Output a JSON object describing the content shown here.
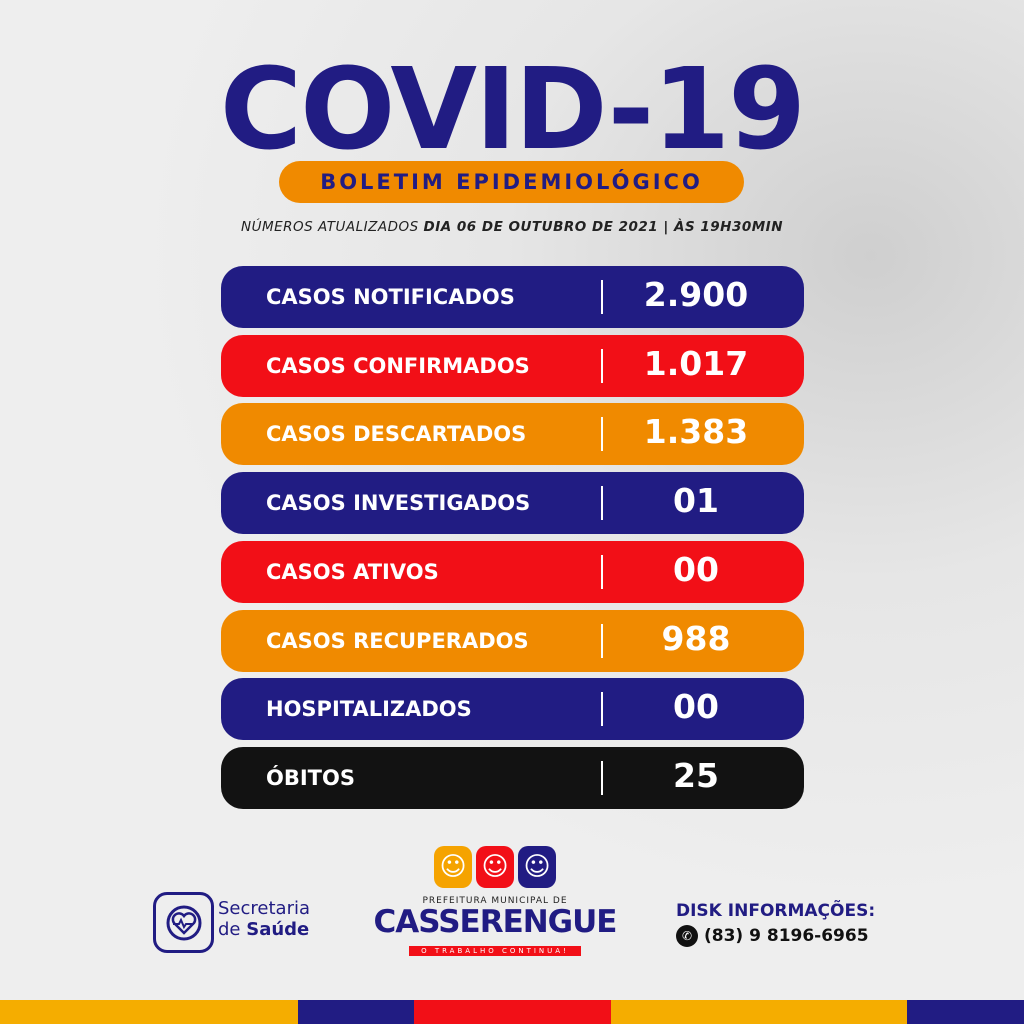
{
  "header": {
    "title": "COVID-19",
    "subtitle": "BOLETIM EPIDEMIOLÓGICO",
    "updated_prefix": "NÚMEROS ATUALIZADOS ",
    "updated_date": "DIA 06 DE OUTUBRO DE 2021 | ÀS 19H30MIN"
  },
  "colors": {
    "navy": "#211c83",
    "red": "#f20f17",
    "orange": "#f08a00",
    "black": "#121212"
  },
  "stats": [
    {
      "label": "CASOS NOTIFICADOS",
      "value": "2.900",
      "color": "#211c83"
    },
    {
      "label": "CASOS CONFIRMADOS",
      "value": "1.017",
      "color": "#f20f17"
    },
    {
      "label": "CASOS DESCARTADOS",
      "value": "1.383",
      "color": "#f08a00"
    },
    {
      "label": "CASOS INVESTIGADOS",
      "value": "01",
      "color": "#211c83"
    },
    {
      "label": "CASOS ATIVOS",
      "value": "00",
      "color": "#f20f17"
    },
    {
      "label": "CASOS RECUPERADOS",
      "value": "988",
      "color": "#f08a00"
    },
    {
      "label": "HOSPITALIZADOS",
      "value": "00",
      "color": "#211c83"
    },
    {
      "label": "ÓBITOS",
      "value": "25",
      "color": "#121212"
    }
  ],
  "footer": {
    "saude_line1": "Secretaria",
    "saude_line2_prefix": "de ",
    "saude_line2_bold": "Saúde",
    "pref_small": "PREFEITURA MUNICIPAL DE",
    "pref_big": "CASSERENGUE",
    "pref_slogan": "O TRABALHO CONTINUA!",
    "disk_title": "DISK INFORMAÇÕES:",
    "disk_phone": "(83) 9 8196-6965",
    "phone_icon": "whatsapp-icon"
  }
}
